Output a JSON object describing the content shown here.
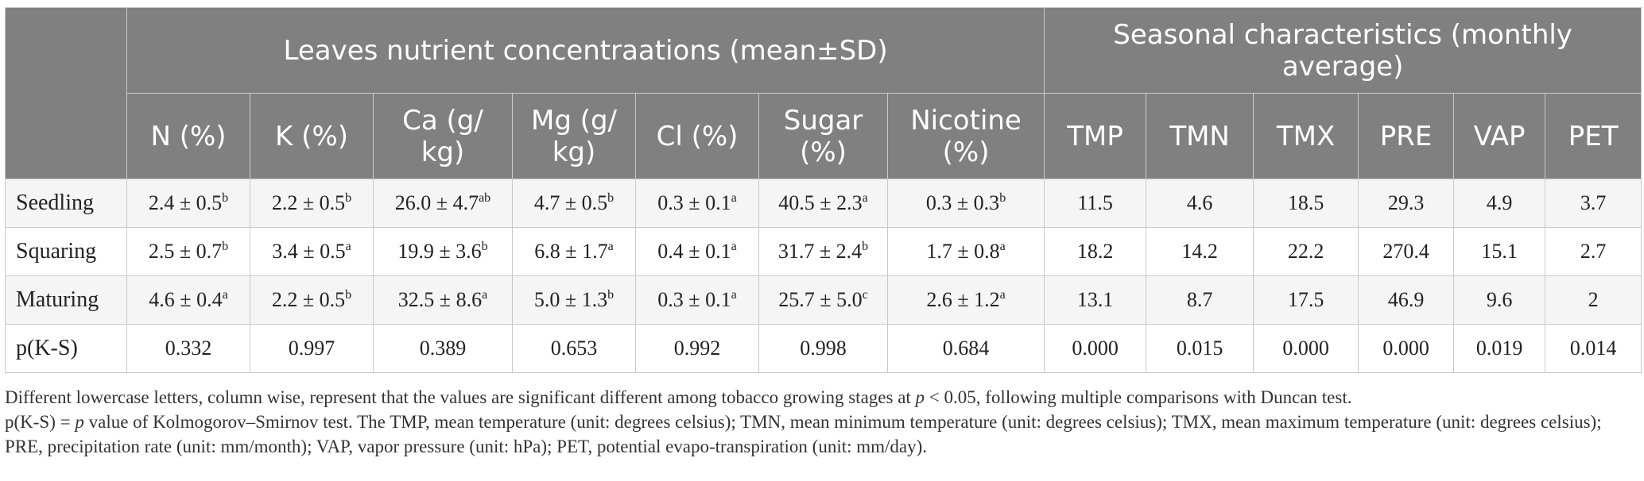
{
  "table": {
    "group_headers": {
      "nutrients": "Leaves nutrient concentraations (mean±SD)",
      "seasonal": "Seasonal characteristics (monthly average)"
    },
    "columns": [
      "N (%)",
      "K (%)",
      "Ca (g/ kg)",
      "Mg (g/ kg)",
      "Cl (%)",
      "Sugar (%)",
      "Nicotine (%)",
      "TMP",
      "TMN",
      "TMX",
      "PRE",
      "VAP",
      "PET"
    ],
    "rows": [
      {
        "label": "Seedling",
        "cells": [
          {
            "v": "2.4 ± 0.5",
            "s": "b"
          },
          {
            "v": "2.2 ± 0.5",
            "s": "b"
          },
          {
            "v": "26.0 ± 4.7",
            "s": "ab"
          },
          {
            "v": "4.7 ± 0.5",
            "s": "b"
          },
          {
            "v": "0.3 ± 0.1",
            "s": "a"
          },
          {
            "v": "40.5 ± 2.3",
            "s": "a"
          },
          {
            "v": "0.3 ± 0.3",
            "s": "b"
          },
          {
            "v": "11.5",
            "s": ""
          },
          {
            "v": "4.6",
            "s": ""
          },
          {
            "v": "18.5",
            "s": ""
          },
          {
            "v": "29.3",
            "s": ""
          },
          {
            "v": "4.9",
            "s": ""
          },
          {
            "v": "3.7",
            "s": ""
          }
        ]
      },
      {
        "label": "Squaring",
        "cells": [
          {
            "v": "2.5 ± 0.7",
            "s": "b"
          },
          {
            "v": "3.4 ± 0.5",
            "s": "a"
          },
          {
            "v": "19.9 ± 3.6",
            "s": "b"
          },
          {
            "v": "6.8 ± 1.7",
            "s": "a"
          },
          {
            "v": "0.4 ± 0.1",
            "s": "a"
          },
          {
            "v": "31.7 ± 2.4",
            "s": "b"
          },
          {
            "v": "1.7 ± 0.8",
            "s": "a"
          },
          {
            "v": "18.2",
            "s": ""
          },
          {
            "v": "14.2",
            "s": ""
          },
          {
            "v": "22.2",
            "s": ""
          },
          {
            "v": "270.4",
            "s": ""
          },
          {
            "v": "15.1",
            "s": ""
          },
          {
            "v": "2.7",
            "s": ""
          }
        ]
      },
      {
        "label": "Maturing",
        "cells": [
          {
            "v": "4.6 ± 0.4",
            "s": "a"
          },
          {
            "v": "2.2 ± 0.5",
            "s": "b"
          },
          {
            "v": "32.5 ± 8.6",
            "s": "a"
          },
          {
            "v": "5.0 ± 1.3",
            "s": "b"
          },
          {
            "v": "0.3 ± 0.1",
            "s": "a"
          },
          {
            "v": "25.7 ± 5.0",
            "s": "c"
          },
          {
            "v": "2.6 ± 1.2",
            "s": "a"
          },
          {
            "v": "13.1",
            "s": ""
          },
          {
            "v": "8.7",
            "s": ""
          },
          {
            "v": "17.5",
            "s": ""
          },
          {
            "v": "46.9",
            "s": ""
          },
          {
            "v": "9.6",
            "s": ""
          },
          {
            "v": "2",
            "s": ""
          }
        ]
      },
      {
        "label": "p(K-S)",
        "cells": [
          {
            "v": "0.332",
            "s": ""
          },
          {
            "v": "0.997",
            "s": ""
          },
          {
            "v": "0.389",
            "s": ""
          },
          {
            "v": "0.653",
            "s": ""
          },
          {
            "v": "0.992",
            "s": ""
          },
          {
            "v": "0.998",
            "s": ""
          },
          {
            "v": "0.684",
            "s": ""
          },
          {
            "v": "0.000",
            "s": ""
          },
          {
            "v": "0.015",
            "s": ""
          },
          {
            "v": "0.000",
            "s": ""
          },
          {
            "v": "0.000",
            "s": ""
          },
          {
            "v": "0.019",
            "s": ""
          },
          {
            "v": "0.014",
            "s": ""
          }
        ]
      }
    ]
  },
  "notes": {
    "line1_a": "Different lowercase letters, column wise, represent that the values are significant different among tobacco growing stages at ",
    "line1_p": "p",
    "line1_b": " < 0.05, following multiple comparisons with Duncan test.",
    "line2_a": "p(K-S) = ",
    "line2_p": "p",
    "line2_b": " value of Kolmogorov–Smirnov test. The TMP, mean temperature (unit: degrees celsius); TMN, mean minimum temperature (unit: degrees celsius); TMX, mean maximum temperature (unit: degrees celsius); PRE, precipitation rate (unit: mm/month); VAP, vapor pressure (unit: hPa); PET, potential evapo-transpiration (unit: mm/day)."
  },
  "colors": {
    "header_bg": "#7f807f",
    "header_text": "#ffffff",
    "grid_line": "#c9c9c9"
  }
}
